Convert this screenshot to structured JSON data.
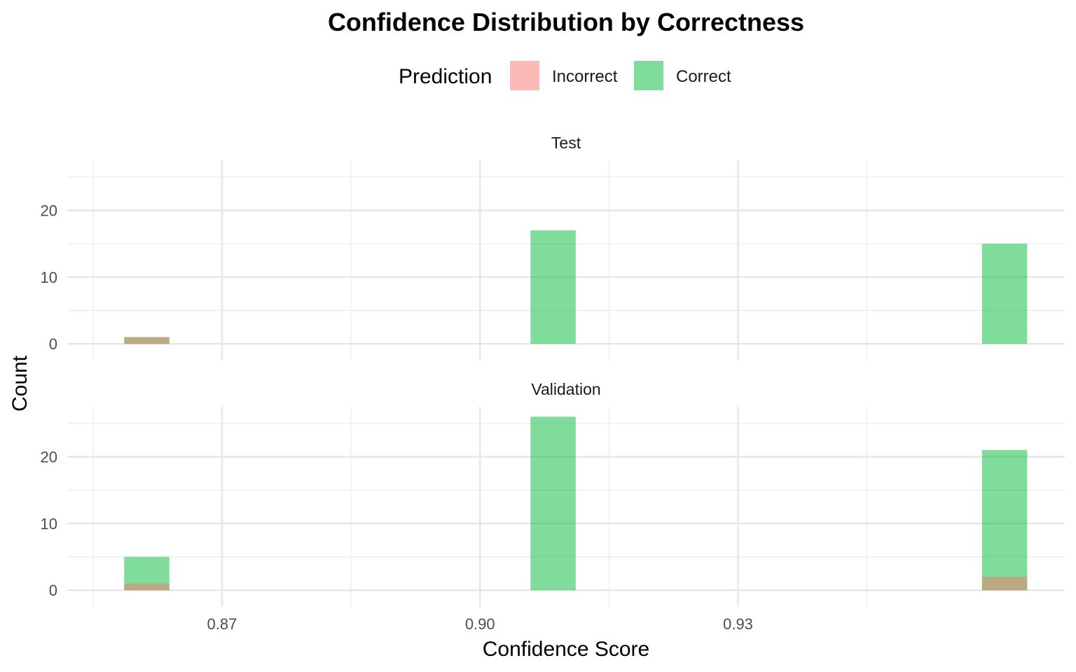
{
  "chart_data": {
    "type": "bar",
    "title": "Confidence Distribution by Correctness",
    "xlabel": "Confidence Score",
    "ylabel": "Count",
    "legend": {
      "title": "Prediction",
      "position": "top",
      "entries": [
        {
          "name": "Incorrect",
          "color": "#F8766D"
        },
        {
          "name": "Correct",
          "color": "#00BA38"
        }
      ]
    },
    "xlim": [
      0.852,
      0.968
    ],
    "x_ticks": [
      0.87,
      0.9,
      0.93
    ],
    "x_tick_labels": [
      "0.87",
      "0.90",
      "0.93"
    ],
    "bin_width": 0.00525,
    "grid": true,
    "panels": [
      {
        "name": "Test",
        "ylim": [
          -2.5,
          27.5
        ],
        "y_ticks": [
          0,
          10,
          20
        ],
        "y_tick_labels": [
          "0",
          "10",
          "20"
        ],
        "series": [
          {
            "name": "Incorrect",
            "x": [
              0.86125
            ],
            "values": [
              1
            ]
          },
          {
            "name": "Correct",
            "x": [
              0.86125,
              0.9085,
              0.961
            ],
            "values": [
              1,
              17,
              15
            ]
          }
        ]
      },
      {
        "name": "Validation",
        "ylim": [
          -2.5,
          27.5
        ],
        "y_ticks": [
          0,
          10,
          20
        ],
        "y_tick_labels": [
          "0",
          "10",
          "20"
        ],
        "series": [
          {
            "name": "Incorrect",
            "x": [
              0.86125,
              0.961
            ],
            "values": [
              1,
              2
            ]
          },
          {
            "name": "Correct",
            "x": [
              0.86125,
              0.9085,
              0.961
            ],
            "values": [
              5,
              26,
              21
            ]
          }
        ]
      }
    ]
  }
}
